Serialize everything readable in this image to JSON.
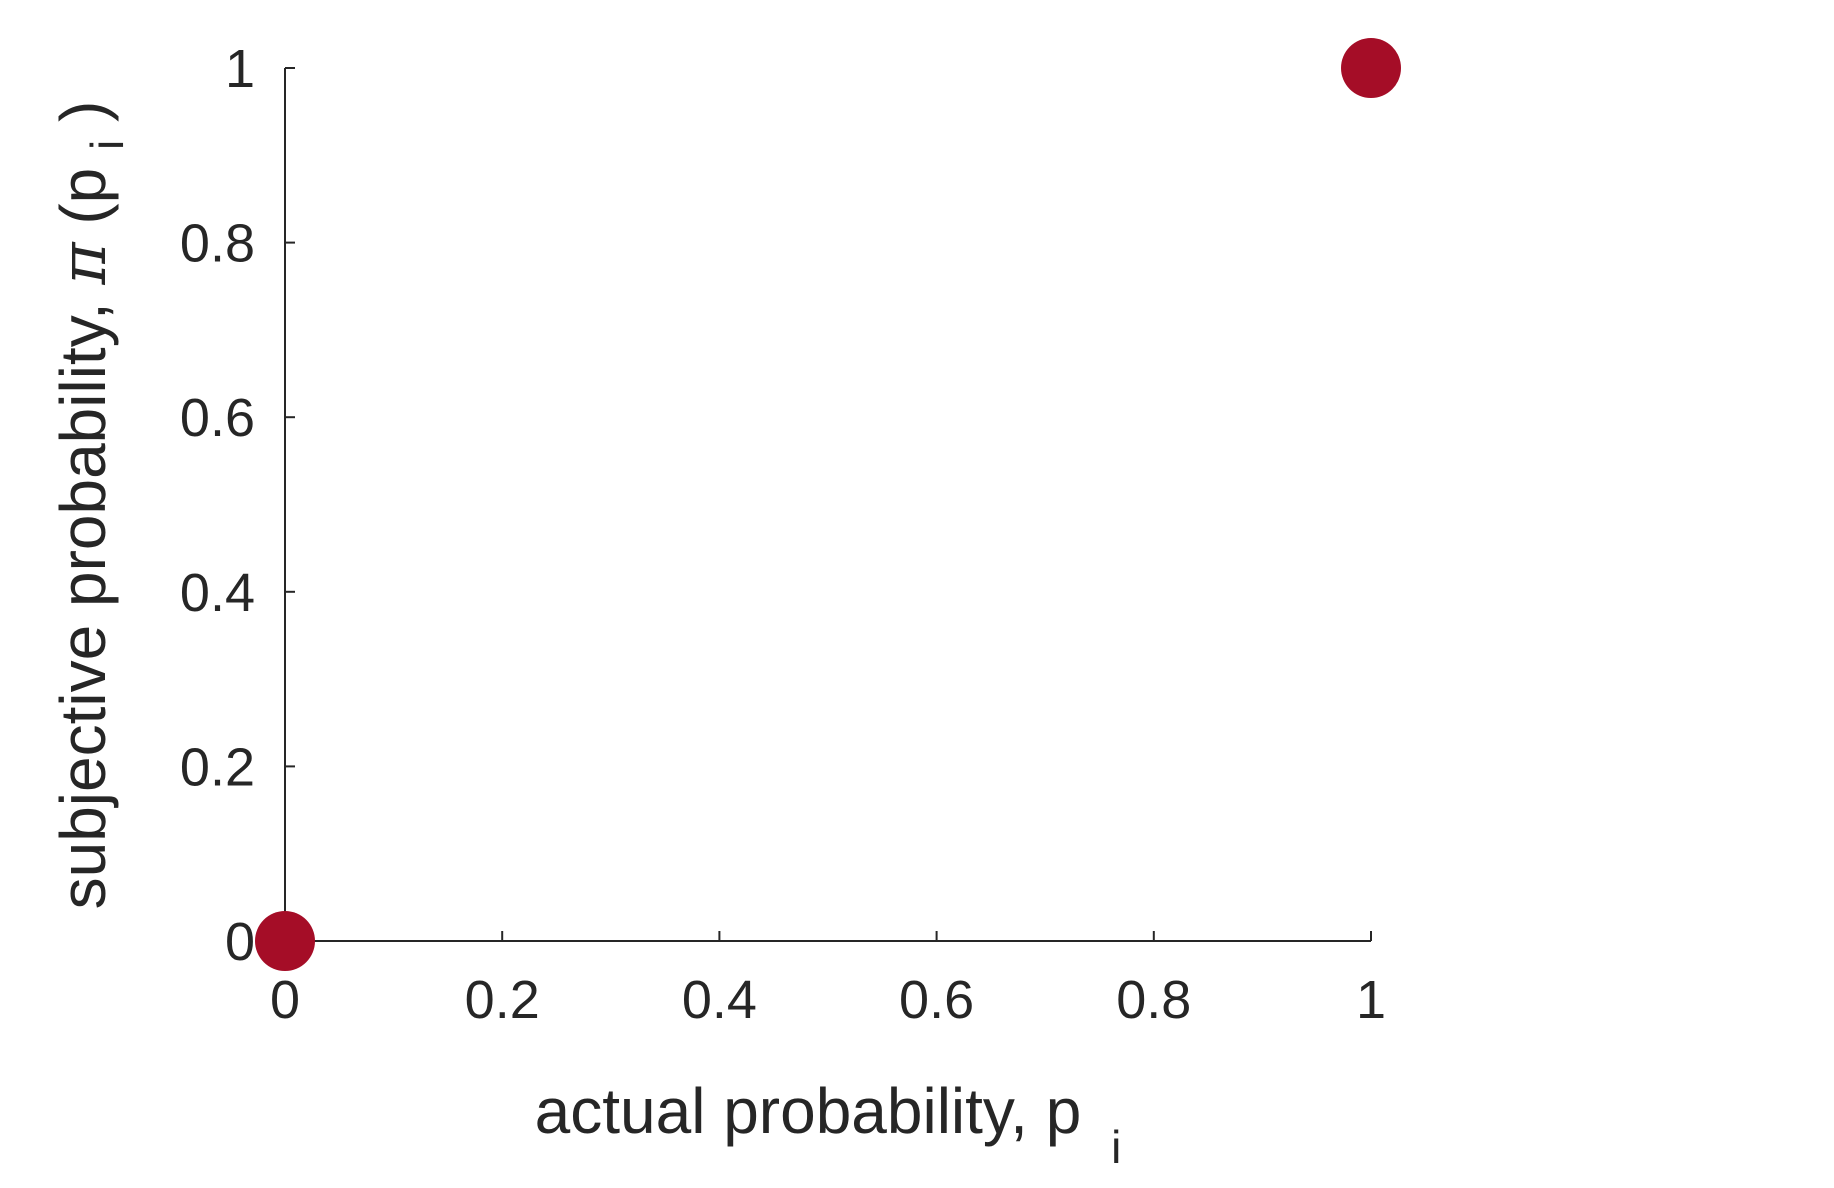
{
  "chart_data": {
    "type": "scatter",
    "x": [
      0,
      1
    ],
    "y": [
      0,
      1
    ],
    "xlim": [
      0,
      1
    ],
    "ylim": [
      0,
      1
    ],
    "xticks": [
      "0",
      "0.2",
      "0.4",
      "0.6",
      "0.8",
      "1"
    ],
    "yticks": [
      "0",
      "0.2",
      "0.4",
      "0.6",
      "0.8",
      "1"
    ],
    "xlabel": {
      "main": "actual probability, p",
      "sub": "i"
    },
    "ylabel": {
      "prefix": "subjective probability,  ",
      "symbol": "π",
      "open": "(p",
      "sub": "i",
      "close": ")"
    },
    "grid": false,
    "marker_color": "#a50d27"
  }
}
